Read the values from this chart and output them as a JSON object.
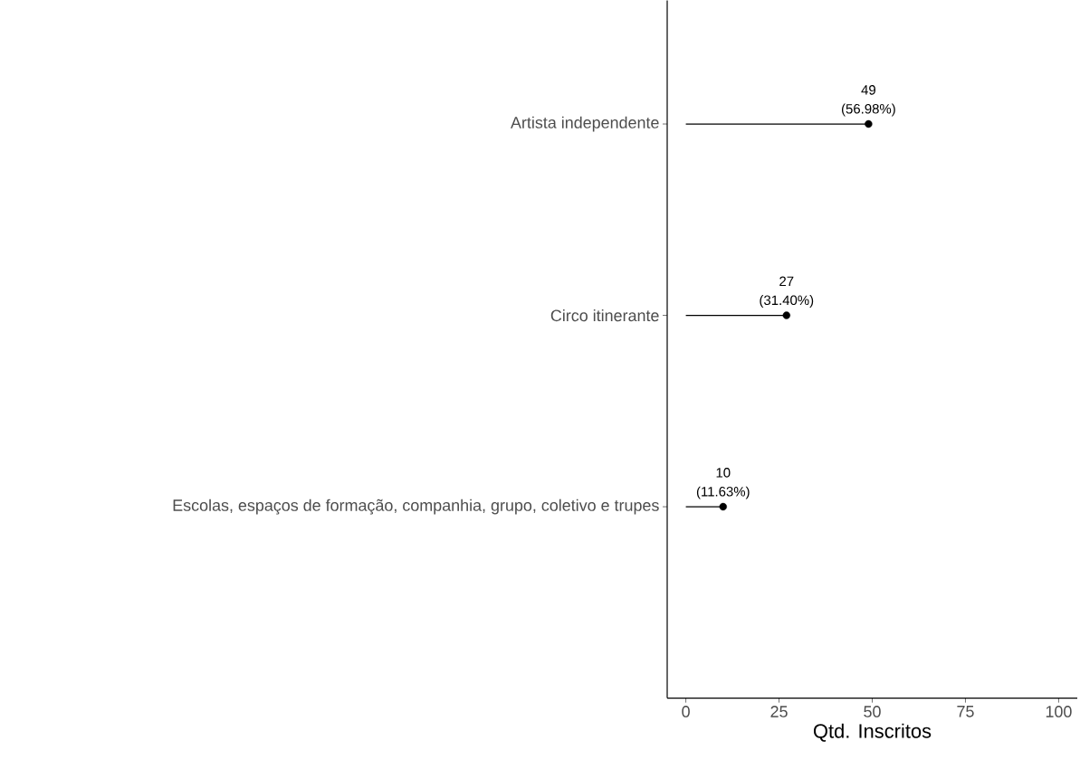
{
  "chart_data": {
    "type": "lollipop",
    "orientation": "horizontal",
    "xlabel": "Qtd. Inscritos",
    "categories": [
      "Artista independente",
      "Circo itinerante",
      "Escolas, espaços de formação, companhia, grupo, coletivo e trupes"
    ],
    "values": [
      49,
      27,
      10
    ],
    "value_labels": [
      "49 (56.98%)",
      "27 (31.40%)",
      "10 (11.63%)"
    ],
    "color": "#000000",
    "marker": "circle",
    "grid": false,
    "xlim": [
      -5,
      105
    ],
    "xticks": [
      0,
      25,
      50,
      75,
      100
    ]
  }
}
